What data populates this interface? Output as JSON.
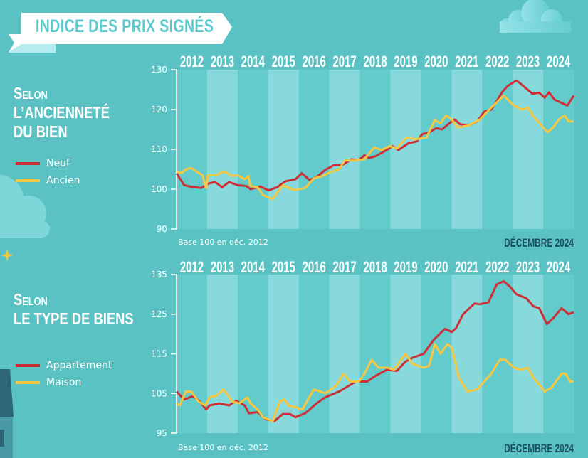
{
  "title": "INDICE DES PRIX SIGNÉS",
  "colors": {
    "background": "#5bc2c3",
    "band_dark": "#64cbcd",
    "band_light": "#87d9db",
    "red": "#cc2f35",
    "yellow": "#f5c842",
    "date_label": "#1f4f5e"
  },
  "sections": [
    {
      "title_lines": [
        "Selon",
        "l’ancienneté",
        "du bien"
      ],
      "legend": [
        {
          "label": "Neuf",
          "color": "#cc2f35"
        },
        {
          "label": "Ancien",
          "color": "#f5c842"
        }
      ]
    },
    {
      "title_lines": [
        "Selon",
        "le type de biens"
      ],
      "legend": [
        {
          "label": "Appartement",
          "color": "#cc2f35"
        },
        {
          "label": "Maison",
          "color": "#f5c842"
        }
      ]
    }
  ],
  "chart_data": [
    {
      "type": "line",
      "categories": [
        "2012",
        "2013",
        "2014",
        "2015",
        "2016",
        "2017",
        "2018",
        "2019",
        "2020",
        "2021",
        "2022",
        "2023",
        "2024"
      ],
      "ylim": [
        90,
        130
      ],
      "yticks": [
        90,
        100,
        110,
        120,
        130
      ],
      "note": "Base 100 en déc. 2012",
      "date_label": "DÉCEMBRE 2024",
      "series": [
        {
          "name": "Neuf",
          "color": "#cc2f35",
          "x": [
            2012.0,
            2012.25,
            2012.43,
            2012.8,
            2013.08,
            2013.26,
            2013.49,
            2013.72,
            2014.0,
            2014.28,
            2014.42,
            2014.74,
            2015.01,
            2015.29,
            2015.57,
            2015.89,
            2016.1,
            2016.35,
            2016.58,
            2016.86,
            2017.14,
            2017.41,
            2017.73,
            2017.97,
            2018.15,
            2018.29,
            2018.52,
            2018.8,
            2019.07,
            2019.26,
            2019.58,
            2019.86,
            2020.04,
            2020.27,
            2020.5,
            2020.69,
            2020.92,
            2021.1,
            2021.28,
            2021.56,
            2021.84,
            2022.07,
            2022.3,
            2022.67,
            2022.85,
            2023.13,
            2023.41,
            2023.64,
            2023.87,
            2024.05,
            2024.19,
            2024.37,
            2024.65,
            2024.79,
            2025.0
          ],
          "y": [
            104,
            101,
            100.7,
            100.3,
            101.5,
            101.8,
            100.5,
            101.8,
            101,
            100.8,
            100,
            100.7,
            99.7,
            100.5,
            102,
            102.5,
            104,
            102.3,
            103,
            104.8,
            106,
            106,
            107.5,
            107.3,
            108.5,
            107.8,
            108.3,
            109.5,
            110.8,
            109.8,
            111.5,
            112,
            113.8,
            114.3,
            115.3,
            115,
            116.5,
            117.5,
            116.3,
            116,
            117,
            119.5,
            120,
            124.5,
            126,
            127.3,
            125.5,
            124,
            124.2,
            123,
            124.3,
            122.5,
            121.5,
            121,
            123.5
          ]
        },
        {
          "name": "Ancien",
          "color": "#f5c842",
          "x": [
            2012.0,
            2012.16,
            2012.3,
            2012.48,
            2012.85,
            2012.97,
            2013.03,
            2013.31,
            2013.54,
            2013.82,
            2014.0,
            2014.23,
            2014.35,
            2014.42,
            2014.65,
            2014.83,
            2015.15,
            2015.48,
            2015.84,
            2016.21,
            2016.49,
            2016.77,
            2017.04,
            2017.32,
            2017.5,
            2017.87,
            2018.15,
            2018.47,
            2018.7,
            2018.98,
            2019.21,
            2019.53,
            2019.81,
            2020.18,
            2020.45,
            2020.64,
            2020.82,
            2021.01,
            2021.19,
            2021.56,
            2021.93,
            2022.3,
            2022.71,
            2023.04,
            2023.31,
            2023.5,
            2023.68,
            2023.96,
            2024.14,
            2024.33,
            2024.51,
            2024.7,
            2024.83,
            2025.0
          ],
          "y": [
            104.5,
            104,
            105,
            105.3,
            103.5,
            100.3,
            103.5,
            103.5,
            104.5,
            103.3,
            103.5,
            102.5,
            103.3,
            100.8,
            100.5,
            98.5,
            97.5,
            101,
            99.8,
            100.3,
            102.7,
            103.3,
            104.3,
            105,
            107.2,
            107.2,
            107.5,
            110.5,
            109.8,
            110.8,
            110.2,
            113,
            112.5,
            113,
            117.3,
            116.5,
            118.5,
            117.5,
            115.5,
            116,
            117.5,
            120.5,
            123.5,
            121,
            120,
            120.5,
            118.3,
            115.8,
            114.3,
            115.5,
            117.5,
            118.5,
            117,
            117
          ]
        }
      ]
    },
    {
      "type": "line",
      "categories": [
        "2012",
        "2013",
        "2014",
        "2015",
        "2016",
        "2017",
        "2018",
        "2019",
        "2020",
        "2021",
        "2022",
        "2023",
        "2024"
      ],
      "ylim": [
        95,
        135
      ],
      "yticks": [
        95,
        105,
        115,
        125,
        135
      ],
      "note": "Base 100 en déc. 2012",
      "date_label": "DÉCEMBRE 2024",
      "series": [
        {
          "name": "Appartement",
          "color": "#cc2f35",
          "x": [
            2012.0,
            2012.25,
            2012.53,
            2012.76,
            2012.97,
            2013.08,
            2013.4,
            2013.72,
            2013.95,
            2014.23,
            2014.37,
            2014.65,
            2014.92,
            2015.2,
            2015.48,
            2015.71,
            2015.89,
            2016.21,
            2016.58,
            2016.86,
            2017.32,
            2017.87,
            2018.24,
            2018.52,
            2018.89,
            2019.21,
            2019.49,
            2019.72,
            2020.09,
            2020.41,
            2020.78,
            2021.01,
            2021.15,
            2021.38,
            2021.75,
            2021.93,
            2022.21,
            2022.48,
            2022.71,
            2022.9,
            2023.13,
            2023.45,
            2023.68,
            2023.87,
            2024.12,
            2024.33,
            2024.6,
            2024.83,
            2025.0
          ],
          "y": [
            105.5,
            103.5,
            104.3,
            103,
            101,
            102,
            102.5,
            102,
            103.2,
            102,
            100,
            100.3,
            98.5,
            98,
            99.8,
            99.8,
            99,
            100,
            102.5,
            104,
            105.5,
            108,
            108,
            109.5,
            111,
            110.7,
            113,
            114,
            115,
            118.5,
            121.3,
            120.5,
            121.5,
            125,
            127.7,
            127.5,
            128,
            132.5,
            133.3,
            132,
            130,
            129,
            127,
            126.5,
            122.5,
            124,
            126.5,
            125,
            125.5
          ]
        },
        {
          "name": "Maison",
          "color": "#f5c842",
          "x": [
            2012.0,
            2012.11,
            2012.3,
            2012.48,
            2012.71,
            2012.94,
            2013.08,
            2013.31,
            2013.54,
            2013.82,
            2014.05,
            2014.32,
            2014.42,
            2014.65,
            2014.83,
            2015.15,
            2015.38,
            2015.52,
            2015.66,
            2015.89,
            2016.12,
            2016.49,
            2016.72,
            2016.86,
            2017.23,
            2017.46,
            2017.69,
            2017.97,
            2018.15,
            2018.38,
            2018.61,
            2018.89,
            2019.12,
            2019.49,
            2019.72,
            2020.09,
            2020.27,
            2020.45,
            2020.64,
            2020.87,
            2021.01,
            2021.24,
            2021.52,
            2021.84,
            2022.3,
            2022.58,
            2022.76,
            2023.04,
            2023.27,
            2023.5,
            2023.68,
            2024.05,
            2024.28,
            2024.6,
            2024.74,
            2024.88,
            2025.0
          ],
          "y": [
            102.5,
            102,
            105.5,
            105.5,
            103,
            102,
            104,
            104.5,
            106,
            103,
            102.5,
            104,
            102.5,
            101,
            99,
            98,
            103,
            103.5,
            102,
            101.5,
            101,
            106,
            105.5,
            105,
            107,
            110,
            108,
            108,
            110,
            113.5,
            111.5,
            111.5,
            111,
            115,
            112.5,
            111.5,
            112,
            117.5,
            115,
            117.5,
            116.5,
            109,
            105.5,
            106,
            110,
            113.5,
            113.5,
            111.5,
            111,
            111.5,
            109,
            105.5,
            106.5,
            110,
            110,
            108,
            108
          ]
        }
      ]
    }
  ]
}
